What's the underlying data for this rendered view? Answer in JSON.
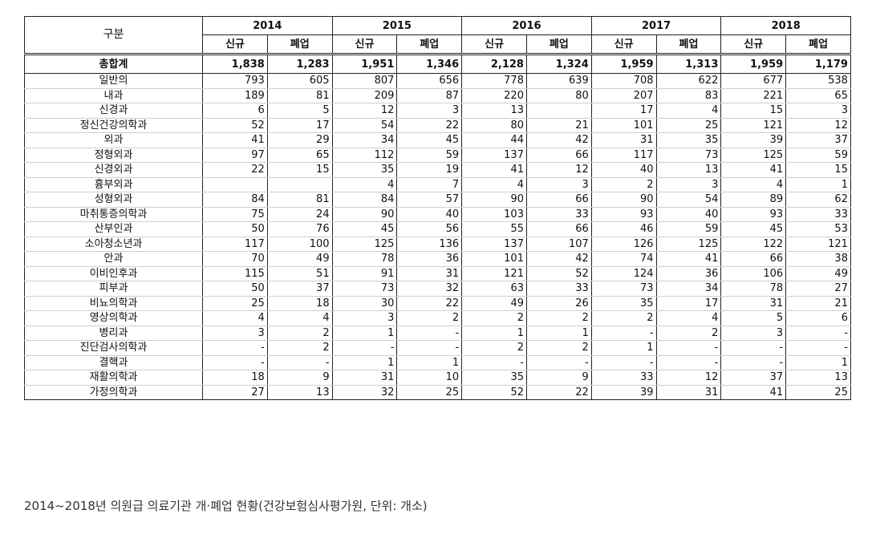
{
  "table": {
    "label_header": "구분",
    "years": [
      "2014",
      "2015",
      "2016",
      "2017",
      "2018"
    ],
    "sub_headers": [
      "신규",
      "폐업"
    ],
    "total": {
      "label": "총합계",
      "values": [
        "1,838",
        "1,283",
        "1,951",
        "1,346",
        "2,128",
        "1,324",
        "1,959",
        "1,313",
        "1,959",
        "1,179"
      ]
    },
    "rows": [
      {
        "label": "일반의",
        "values": [
          "793",
          "605",
          "807",
          "656",
          "778",
          "639",
          "708",
          "622",
          "677",
          "538"
        ]
      },
      {
        "label": "내과",
        "values": [
          "189",
          "81",
          "209",
          "87",
          "220",
          "80",
          "207",
          "83",
          "221",
          "65"
        ]
      },
      {
        "label": "신경과",
        "values": [
          "6",
          "5",
          "12",
          "3",
          "13",
          "",
          "17",
          "4",
          "15",
          "3"
        ]
      },
      {
        "label": "정신건강의학과",
        "values": [
          "52",
          "17",
          "54",
          "22",
          "80",
          "21",
          "101",
          "25",
          "121",
          "12"
        ]
      },
      {
        "label": "외과",
        "values": [
          "41",
          "29",
          "34",
          "45",
          "44",
          "42",
          "31",
          "35",
          "39",
          "37"
        ]
      },
      {
        "label": "정형외과",
        "values": [
          "97",
          "65",
          "112",
          "59",
          "137",
          "66",
          "117",
          "73",
          "125",
          "59"
        ]
      },
      {
        "label": "신경외과",
        "values": [
          "22",
          "15",
          "35",
          "19",
          "41",
          "12",
          "40",
          "13",
          "41",
          "15"
        ]
      },
      {
        "label": "흉부외과",
        "values": [
          "",
          "",
          "4",
          "7",
          "4",
          "3",
          "2",
          "3",
          "4",
          "1"
        ]
      },
      {
        "label": "성형외과",
        "values": [
          "84",
          "81",
          "84",
          "57",
          "90",
          "66",
          "90",
          "54",
          "89",
          "62"
        ]
      },
      {
        "label": "마취통증의학과",
        "values": [
          "75",
          "24",
          "90",
          "40",
          "103",
          "33",
          "93",
          "40",
          "93",
          "33"
        ]
      },
      {
        "label": "산부인과",
        "values": [
          "50",
          "76",
          "45",
          "56",
          "55",
          "66",
          "46",
          "59",
          "45",
          "53"
        ]
      },
      {
        "label": "소아청소년과",
        "values": [
          "117",
          "100",
          "125",
          "136",
          "137",
          "107",
          "126",
          "125",
          "122",
          "121"
        ]
      },
      {
        "label": "안과",
        "values": [
          "70",
          "49",
          "78",
          "36",
          "101",
          "42",
          "74",
          "41",
          "66",
          "38"
        ]
      },
      {
        "label": "이비인후과",
        "values": [
          "115",
          "51",
          "91",
          "31",
          "121",
          "52",
          "124",
          "36",
          "106",
          "49"
        ]
      },
      {
        "label": "피부과",
        "values": [
          "50",
          "37",
          "73",
          "32",
          "63",
          "33",
          "73",
          "34",
          "78",
          "27"
        ]
      },
      {
        "label": "비뇨의학과",
        "values": [
          "25",
          "18",
          "30",
          "22",
          "49",
          "26",
          "35",
          "17",
          "31",
          "21"
        ]
      },
      {
        "label": "영상의학과",
        "values": [
          "4",
          "4",
          "3",
          "2",
          "2",
          "2",
          "2",
          "4",
          "5",
          "6"
        ]
      },
      {
        "label": "병리과",
        "values": [
          "3",
          "2",
          "1",
          "-",
          "1",
          "1",
          "-",
          "2",
          "3",
          "-"
        ]
      },
      {
        "label": "진단검사의학과",
        "values": [
          "-",
          "2",
          "-",
          "-",
          "2",
          "2",
          "1",
          "-",
          "-",
          "-"
        ]
      },
      {
        "label": "결핵과",
        "values": [
          "-",
          "-",
          "1",
          "1",
          "-",
          "-",
          "-",
          "-",
          "-",
          "1"
        ]
      },
      {
        "label": "재활의학과",
        "values": [
          "18",
          "9",
          "31",
          "10",
          "35",
          "9",
          "33",
          "12",
          "37",
          "13"
        ]
      },
      {
        "label": "가정의학과",
        "values": [
          "27",
          "13",
          "32",
          "25",
          "52",
          "22",
          "39",
          "31",
          "41",
          "25"
        ]
      }
    ]
  },
  "caption": "2014~2018년 의원급 의료기관 개·폐업 현황(건강보험심사평가원, 단위: 개소)"
}
